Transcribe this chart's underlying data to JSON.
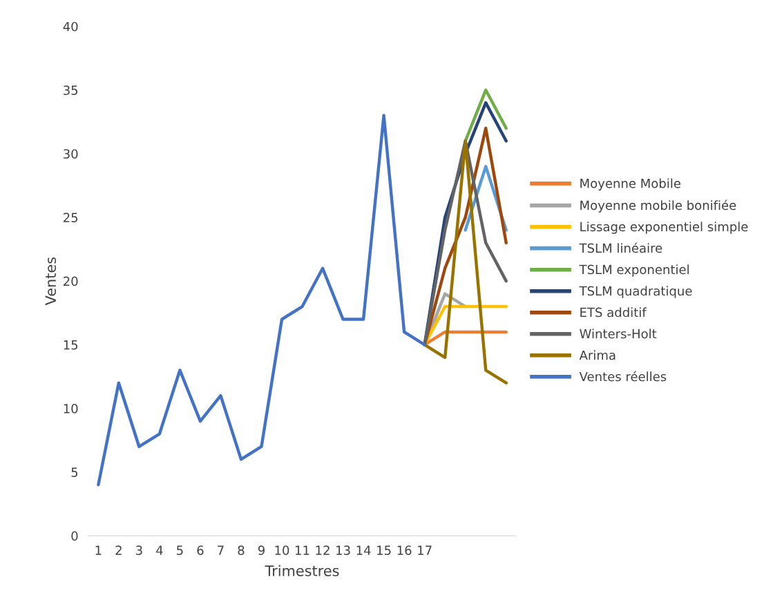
{
  "chart_data": {
    "type": "line",
    "xlabel": "Trimestres",
    "ylabel": "Ventes",
    "categories": [
      "1",
      "2",
      "3",
      "4",
      "5",
      "6",
      "7",
      "8",
      "9",
      "10",
      "11",
      "12",
      "13",
      "14",
      "15",
      "16",
      "17",
      null,
      null,
      null,
      null
    ],
    "ylim": [
      0,
      40
    ],
    "yticks": [
      0,
      5,
      10,
      15,
      20,
      25,
      30,
      35,
      40
    ],
    "grid": false,
    "legend": "right",
    "marker": "none",
    "line_style": "solid",
    "series": [
      {
        "name": "Moyenne Mobile",
        "color": "#ed7d31",
        "values": [
          null,
          null,
          null,
          null,
          null,
          null,
          null,
          null,
          null,
          null,
          null,
          null,
          null,
          null,
          null,
          null,
          15,
          16,
          16,
          16,
          16
        ]
      },
      {
        "name": "Moyenne mobile bonifiée",
        "color": "#a5a5a5",
        "values": [
          null,
          null,
          null,
          null,
          null,
          null,
          null,
          null,
          null,
          null,
          null,
          null,
          null,
          null,
          null,
          null,
          15,
          19,
          18,
          null,
          null
        ]
      },
      {
        "name": "Lissage exponentiel simple",
        "color": "#ffc000",
        "values": [
          null,
          null,
          null,
          null,
          null,
          null,
          null,
          null,
          null,
          null,
          null,
          null,
          null,
          null,
          null,
          null,
          15,
          18,
          18,
          18,
          18
        ]
      },
      {
        "name": "TSLM linéaire",
        "color": "#5b9bd5",
        "values": [
          null,
          null,
          null,
          null,
          null,
          null,
          null,
          null,
          null,
          null,
          null,
          null,
          null,
          null,
          null,
          null,
          null,
          null,
          24,
          29,
          24
        ]
      },
      {
        "name": "TSLM exponentiel",
        "color": "#70ad47",
        "values": [
          null,
          null,
          null,
          null,
          null,
          null,
          null,
          null,
          null,
          null,
          null,
          null,
          null,
          null,
          null,
          null,
          null,
          null,
          31,
          35,
          32
        ]
      },
      {
        "name": "TSLM quadratique",
        "color": "#264478",
        "values": [
          null,
          null,
          null,
          null,
          null,
          null,
          null,
          null,
          null,
          null,
          null,
          null,
          null,
          null,
          null,
          null,
          15,
          25,
          30,
          34,
          31
        ]
      },
      {
        "name": "ETS additif",
        "color": "#9e480e",
        "values": [
          null,
          null,
          null,
          null,
          null,
          null,
          null,
          null,
          null,
          null,
          null,
          null,
          null,
          null,
          null,
          null,
          15,
          21,
          25,
          32,
          23
        ]
      },
      {
        "name": "Winters-Holt",
        "color": "#636363",
        "values": [
          null,
          null,
          null,
          null,
          null,
          null,
          null,
          null,
          null,
          null,
          null,
          null,
          null,
          null,
          null,
          null,
          15,
          24,
          31,
          23,
          20
        ]
      },
      {
        "name": "Arima",
        "color": "#997300",
        "values": [
          null,
          null,
          null,
          null,
          null,
          null,
          null,
          null,
          null,
          null,
          null,
          null,
          null,
          null,
          null,
          null,
          15,
          14,
          31,
          13,
          12
        ]
      },
      {
        "name": "Ventes réelles",
        "color": "#4472c4",
        "values": [
          4,
          12,
          7,
          8,
          13,
          9,
          11,
          6,
          7,
          17,
          18,
          21,
          17,
          17,
          33,
          16,
          15,
          null,
          null,
          null,
          null
        ]
      }
    ]
  }
}
